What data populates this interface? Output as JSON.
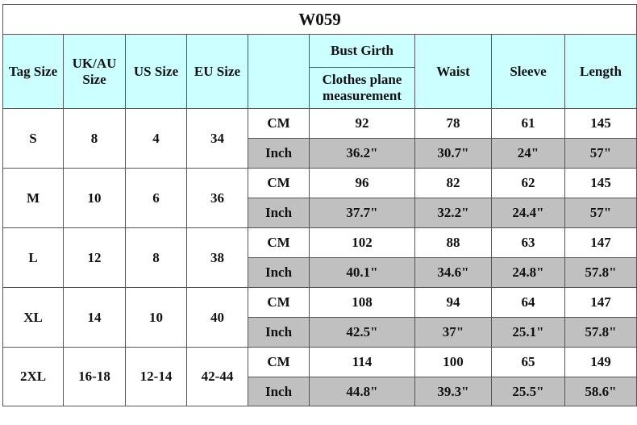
{
  "title": "W059",
  "headers": {
    "tag_size": "Tag Size",
    "uk_au_size": "UK/AU Size",
    "us_size": "US Size",
    "eu_size": "EU Size",
    "unit": "",
    "bust_girth": "Bust Girth",
    "bust_note": "Clothes plane measurement",
    "waist": "Waist",
    "sleeve": "Sleeve",
    "length": "Length"
  },
  "colors": {
    "header_bg": "#ccffff",
    "inch_row_bg": "#c0c0c0",
    "border": "#555555"
  },
  "rows": [
    {
      "tag": "S",
      "uk_au": "8",
      "us": "4",
      "eu": "34",
      "cm": {
        "unit": "CM",
        "bust": "92",
        "waist": "78",
        "sleeve": "61",
        "length": "145"
      },
      "inch": {
        "unit": "Inch",
        "bust": "36.2\"",
        "waist": "30.7\"",
        "sleeve": "24\"",
        "length": "57\""
      }
    },
    {
      "tag": "M",
      "uk_au": "10",
      "us": "6",
      "eu": "36",
      "cm": {
        "unit": "CM",
        "bust": "96",
        "waist": "82",
        "sleeve": "62",
        "length": "145"
      },
      "inch": {
        "unit": "Inch",
        "bust": "37.7\"",
        "waist": "32.2\"",
        "sleeve": "24.4\"",
        "length": "57\""
      }
    },
    {
      "tag": "L",
      "uk_au": "12",
      "us": "8",
      "eu": "38",
      "cm": {
        "unit": "CM",
        "bust": "102",
        "waist": "88",
        "sleeve": "63",
        "length": "147"
      },
      "inch": {
        "unit": "Inch",
        "bust": "40.1\"",
        "waist": "34.6\"",
        "sleeve": "24.8\"",
        "length": "57.8\""
      }
    },
    {
      "tag": "XL",
      "uk_au": "14",
      "us": "10",
      "eu": "40",
      "cm": {
        "unit": "CM",
        "bust": "108",
        "waist": "94",
        "sleeve": "64",
        "length": "147"
      },
      "inch": {
        "unit": "Inch",
        "bust": "42.5\"",
        "waist": "37\"",
        "sleeve": "25.1\"",
        "length": "57.8\""
      }
    },
    {
      "tag": "2XL",
      "uk_au": "16-18",
      "us": "12-14",
      "eu": "42-44",
      "cm": {
        "unit": "CM",
        "bust": "114",
        "waist": "100",
        "sleeve": "65",
        "length": "149"
      },
      "inch": {
        "unit": "Inch",
        "bust": "44.8\"",
        "waist": "39.3\"",
        "sleeve": "25.5\"",
        "length": "58.6\""
      }
    }
  ]
}
